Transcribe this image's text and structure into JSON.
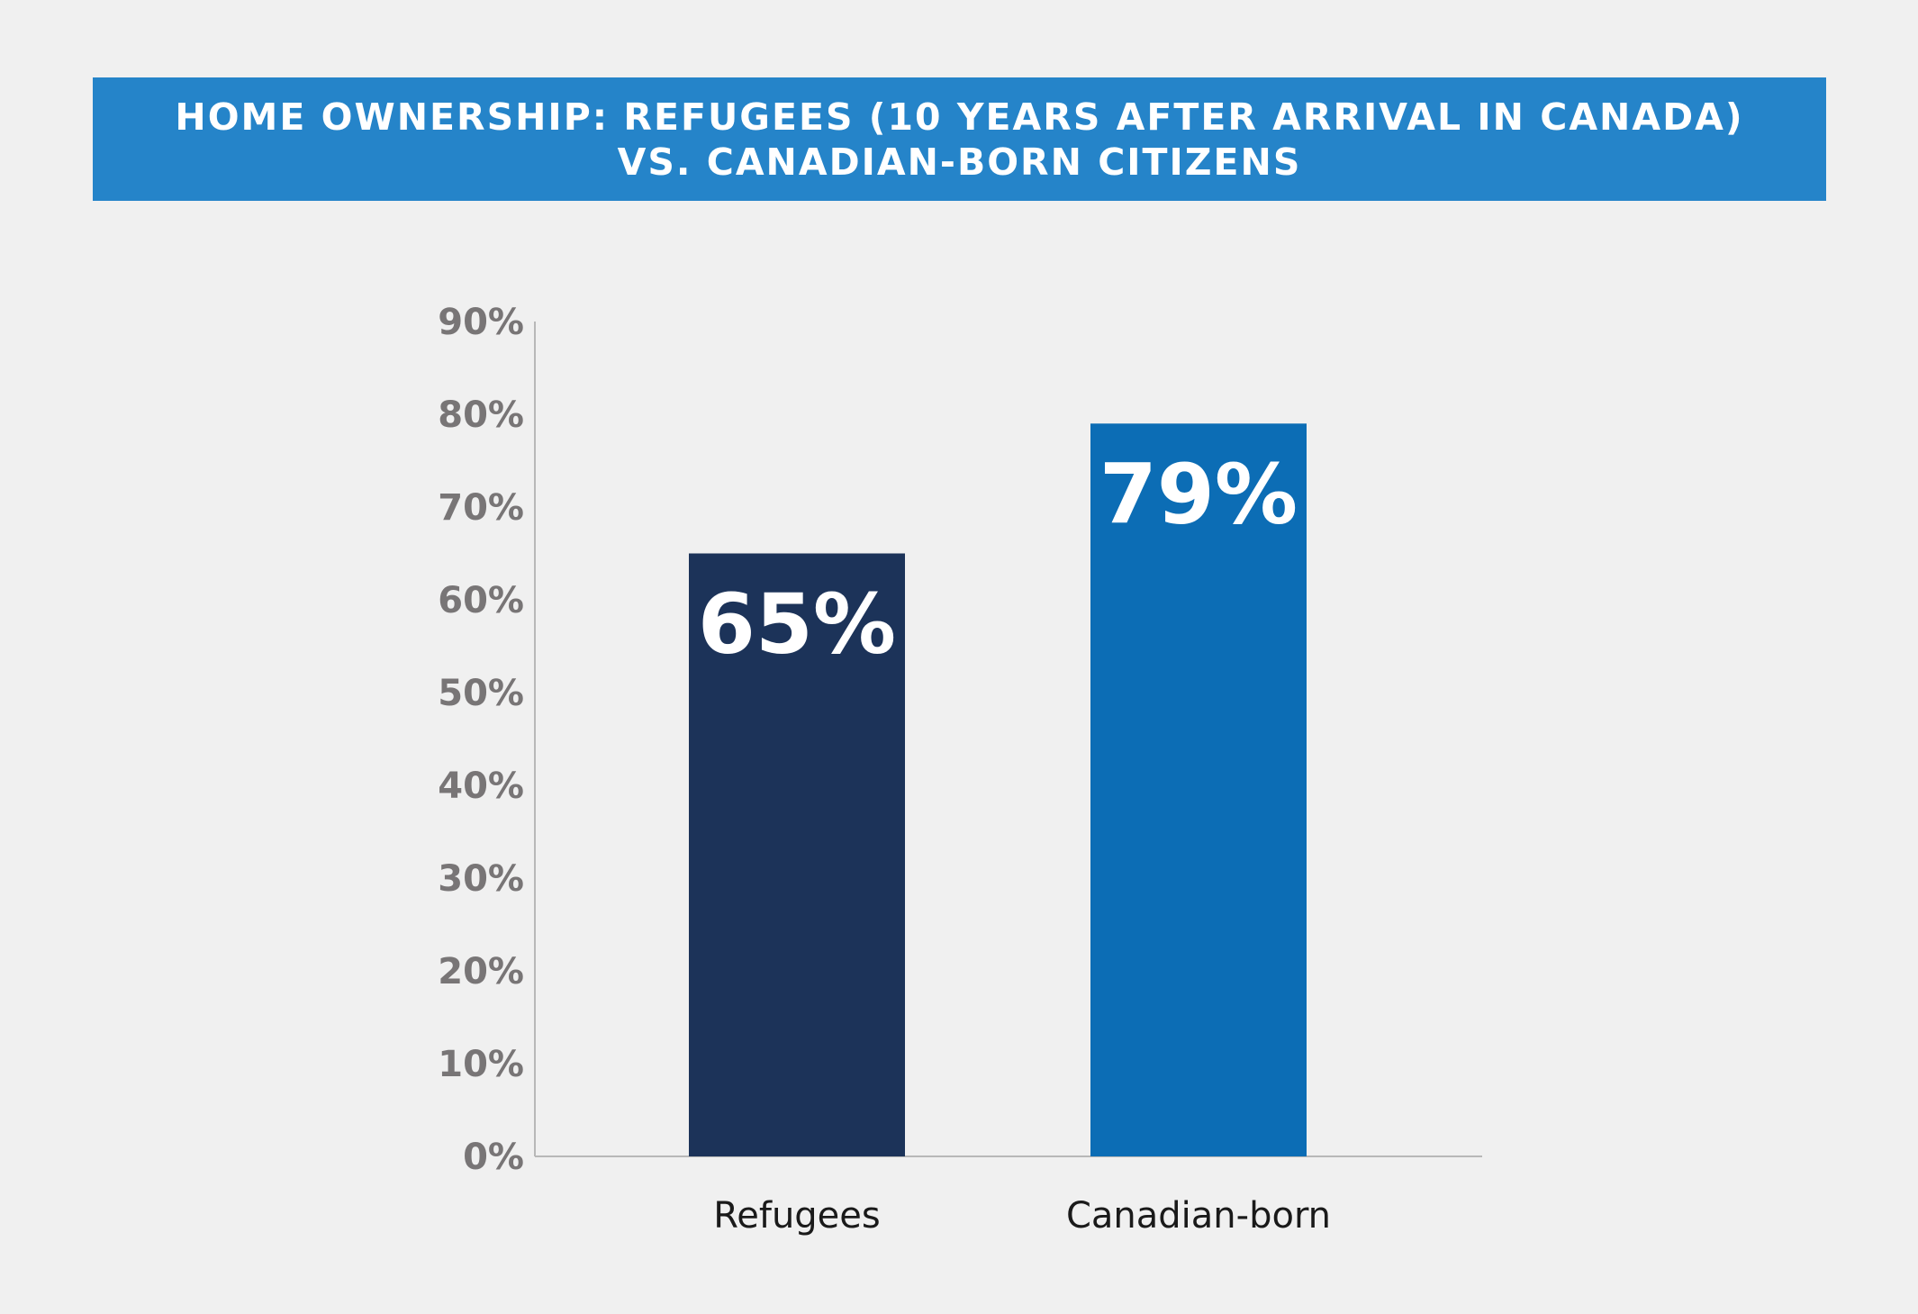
{
  "chart_data": {
    "type": "bar",
    "title_lines": [
      "HOME OWNERSHIP: REFUGEES (10 YEARS AFTER ARRIVAL IN CANADA)",
      "VS. CANADIAN-BORN CITIZENS"
    ],
    "categories": [
      "Refugees",
      "Canadian-born"
    ],
    "values": [
      65,
      79
    ],
    "data_labels": [
      "65%",
      "79%"
    ],
    "bar_colors": [
      "#1c3359",
      "#0c6db5"
    ],
    "ylim": [
      0,
      90
    ],
    "yticks": [
      0,
      10,
      20,
      30,
      40,
      50,
      60,
      70,
      80,
      90
    ],
    "ytick_labels": [
      "0%",
      "10%",
      "20%",
      "30%",
      "40%",
      "50%",
      "60%",
      "70%",
      "80%",
      "90%"
    ],
    "xlabel": "",
    "ylabel": "",
    "grid": false,
    "legend": "none"
  },
  "colors": {
    "background": "#f0f0f0",
    "title_banner": "#2584c9",
    "axis": "#b8b8b8",
    "tick_text": "#787576"
  }
}
